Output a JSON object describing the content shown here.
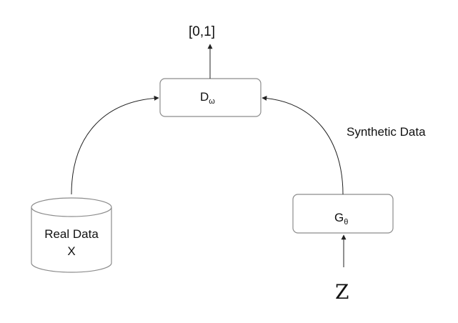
{
  "diagram": {
    "output_label": "[0,1]",
    "discriminator": {
      "symbol": "D",
      "subscript": "ω"
    },
    "generator": {
      "symbol": "G",
      "subscript": "θ"
    },
    "real_data": {
      "line1": "Real Data",
      "line2": "X"
    },
    "synthetic_label": "Synthetic Data",
    "noise_label": "Z",
    "colors": {
      "stroke": "#8c8c8c",
      "edge": "#222222",
      "text": "#111111",
      "background": "#ffffff"
    }
  }
}
